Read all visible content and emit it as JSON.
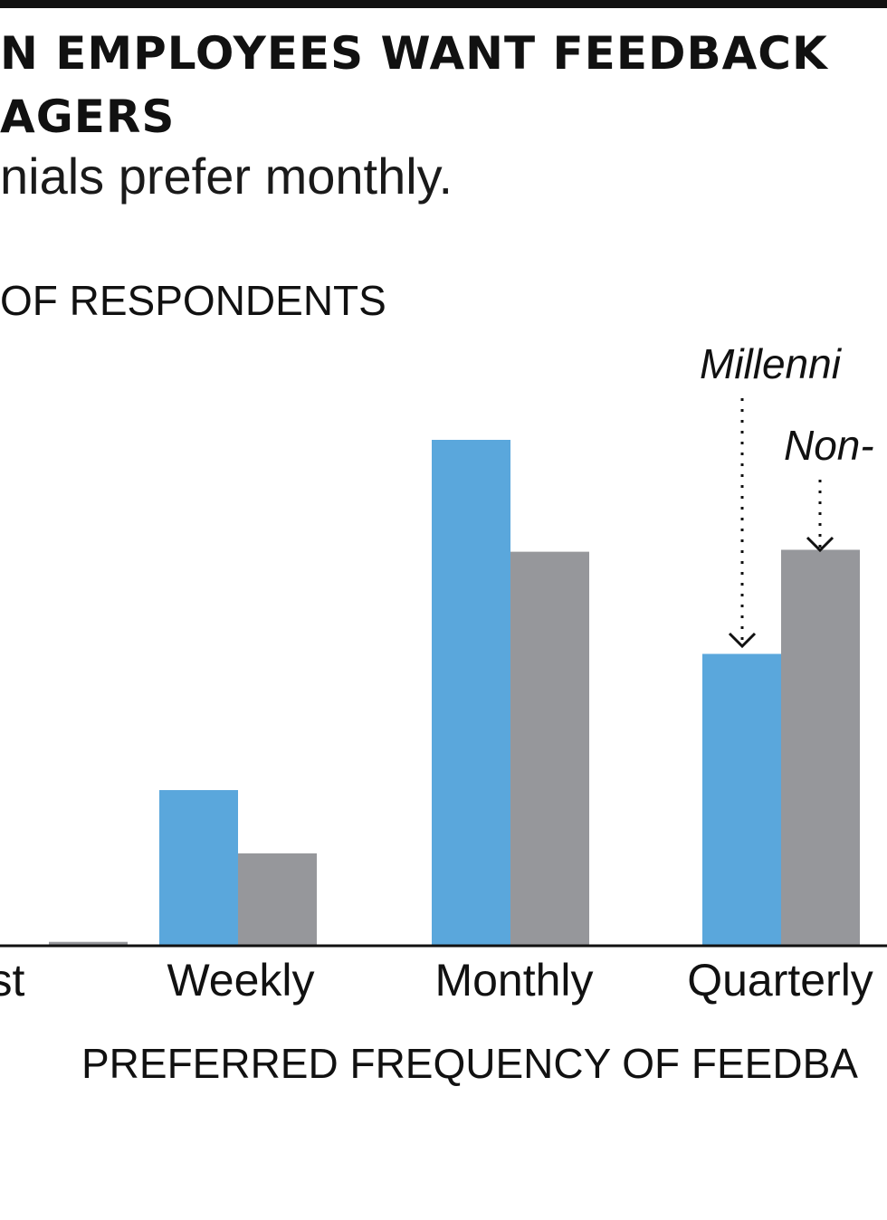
{
  "colors": {
    "millennials": "#5aa7dc",
    "non_millennials": "#96979b",
    "ink": "#111111"
  },
  "title_lines": [
    "N EMPLOYEES WANT FEEDBACK",
    "AGERS"
  ],
  "subtitle": "nials prefer monthly.",
  "ylabel": "OF RESPONDENTS",
  "xlabel": "PREFERRED FREQUENCY OF FEEDBA",
  "chart_data": {
    "type": "bar",
    "categories": [
      "st",
      "Weekly",
      "Monthly",
      "Quarterly"
    ],
    "series": [
      {
        "name": "Millenni",
        "values": [
          0,
          16,
          52,
          30
        ]
      },
      {
        "name": "Non-",
        "values": [
          0.4,
          9.5,
          40.5,
          40.7
        ]
      }
    ],
    "ylim": [
      0,
      60
    ],
    "grid": false,
    "legend": "annotations above the Quarterly bars"
  }
}
